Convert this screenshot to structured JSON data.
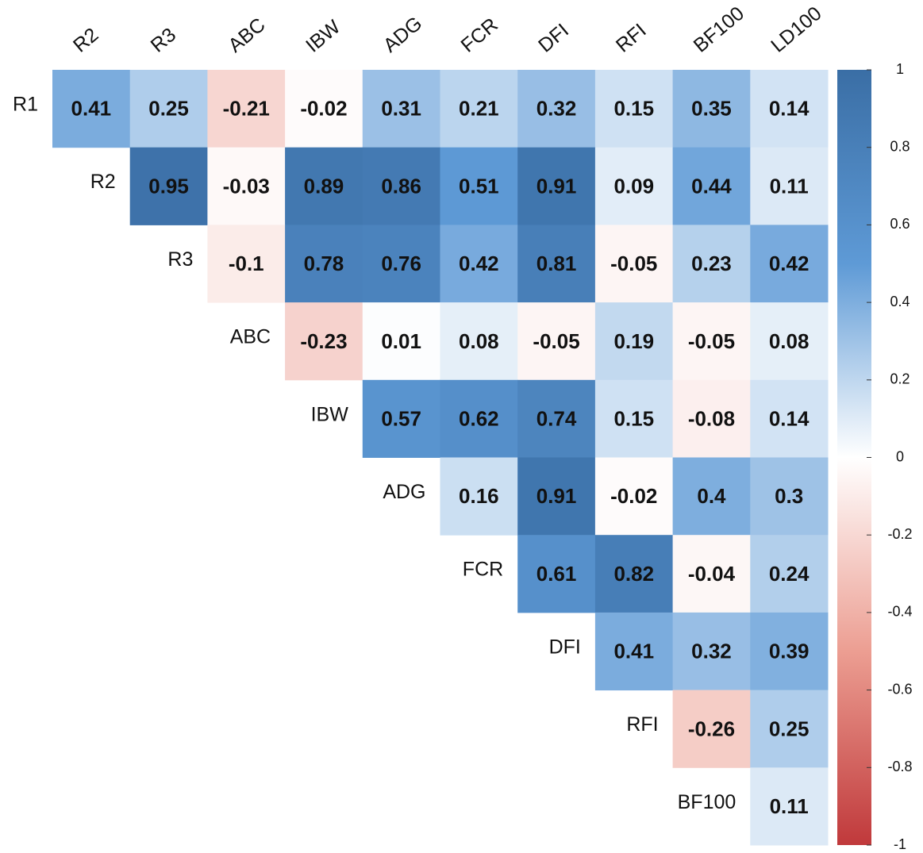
{
  "chart_data": {
    "type": "heatmap",
    "columns": [
      "R2",
      "R3",
      "ABC",
      "IBW",
      "ADG",
      "FCR",
      "DFI",
      "RFI",
      "BF100",
      "LD100"
    ],
    "rows": [
      "R1",
      "R2",
      "R3",
      "ABC",
      "IBW",
      "ADG",
      "FCR",
      "DFI",
      "RFI",
      "BF100"
    ],
    "values": [
      [
        0.41,
        0.25,
        -0.21,
        -0.02,
        0.31,
        0.21,
        0.32,
        0.15,
        0.35,
        0.14
      ],
      [
        null,
        0.95,
        -0.03,
        0.89,
        0.86,
        0.51,
        0.91,
        0.09,
        0.44,
        0.11
      ],
      [
        null,
        null,
        -0.1,
        0.78,
        0.76,
        0.42,
        0.81,
        -0.05,
        0.23,
        0.42
      ],
      [
        null,
        null,
        null,
        -0.23,
        0.01,
        0.08,
        -0.05,
        0.19,
        -0.05,
        0.08
      ],
      [
        null,
        null,
        null,
        null,
        0.57,
        0.62,
        0.74,
        0.15,
        -0.08,
        0.14
      ],
      [
        null,
        null,
        null,
        null,
        null,
        0.16,
        0.91,
        -0.02,
        0.4,
        0.3
      ],
      [
        null,
        null,
        null,
        null,
        null,
        null,
        0.61,
        0.82,
        -0.04,
        0.24
      ],
      [
        null,
        null,
        null,
        null,
        null,
        null,
        null,
        0.41,
        0.32,
        0.39
      ],
      [
        null,
        null,
        null,
        null,
        null,
        null,
        null,
        null,
        -0.26,
        0.25
      ],
      [
        null,
        null,
        null,
        null,
        null,
        null,
        null,
        null,
        null,
        0.11
      ]
    ],
    "zlim": [
      -1,
      1
    ],
    "zticks": [
      1,
      0.8,
      0.6,
      0.4,
      0.2,
      0,
      -0.2,
      -0.4,
      -0.6,
      -0.8,
      -1
    ],
    "colors": [
      "#c0393b",
      "#ec9e92",
      "#ffffff",
      "#5e9ad6",
      "#3a6ea5"
    ]
  }
}
